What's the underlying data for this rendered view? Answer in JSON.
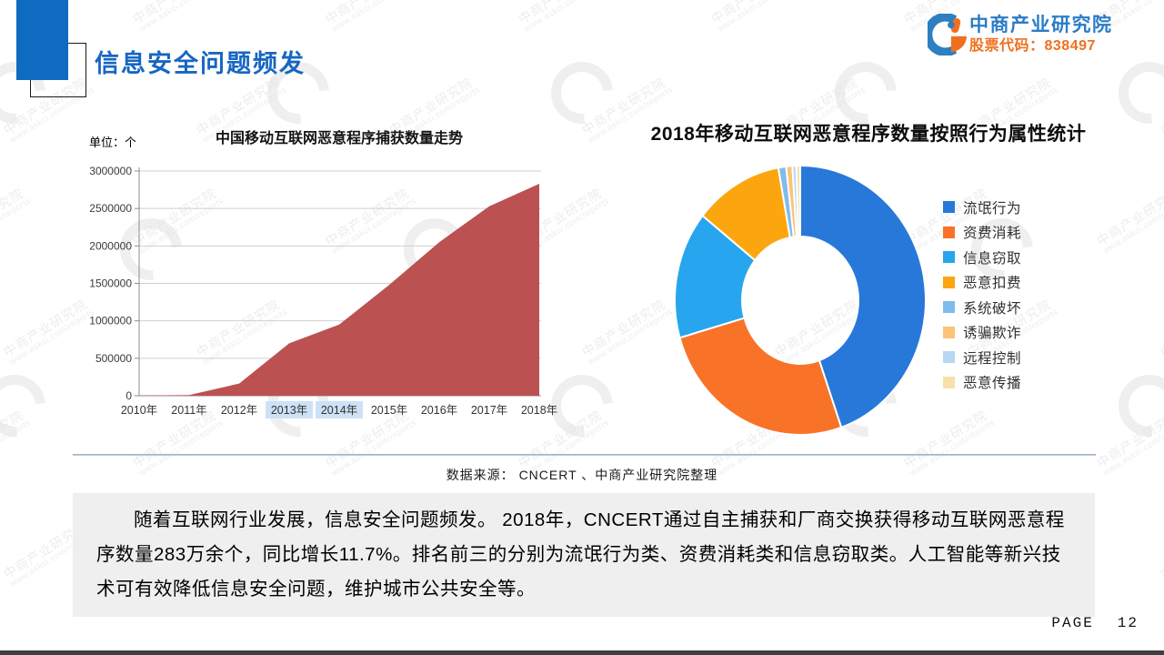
{
  "header": {
    "title": "信息安全问题频发",
    "logo_name": "中商产业研究院",
    "logo_stock": "股票代码：838497"
  },
  "watermark": {
    "line1": "中商产业研究院",
    "line2": "www.askci.com/reports"
  },
  "chart_data": [
    {
      "type": "area",
      "title": "中国移动互联网恶意程序捕获数量走势",
      "unit_label": "单位：个",
      "categories": [
        "2010年",
        "2011年",
        "2012年",
        "2013年",
        "2014年",
        "2015年",
        "2016年",
        "2017年",
        "2018年"
      ],
      "values": [
        4000,
        8000,
        163000,
        700000,
        950000,
        1480000,
        2050000,
        2530000,
        2830000
      ],
      "ylim": [
        0,
        3000000
      ],
      "yticks": [
        0,
        500000,
        1000000,
        1500000,
        2000000,
        2500000,
        3000000
      ],
      "grid": true,
      "color": "#BC5152",
      "highlighted_categories": [
        "2013年",
        "2014年"
      ]
    },
    {
      "type": "donut",
      "title": "2018年移动互联网恶意程序数量按照行为属性统计",
      "unit": "percent",
      "legend_position": "right",
      "series": [
        {
          "name": "流氓行为",
          "value": 44.7,
          "color": "#2878DA"
        },
        {
          "name": "资费消耗",
          "value": 25.8,
          "color": "#F87328"
        },
        {
          "name": "信息窃取",
          "value": 15.3,
          "color": "#27A5EE"
        },
        {
          "name": "恶意扣费",
          "value": 11.4,
          "color": "#FCA60F"
        },
        {
          "name": "系统破坏",
          "value": 1.0,
          "color": "#7FBCEC"
        },
        {
          "name": "诱骗欺诈",
          "value": 0.8,
          "color": "#FBC377"
        },
        {
          "name": "远程控制",
          "value": 0.5,
          "color": "#B7D7F4"
        },
        {
          "name": "恶意传播",
          "value": 0.5,
          "color": "#F8E0A9"
        }
      ]
    }
  ],
  "source_line": "数据来源： CNCERT 、中商产业研究院整理",
  "paragraph": "随着互联网行业发展，信息安全问题频发。 2018年，CNCERT通过自主捕获和厂商交换获得移动互联网恶意程序数量283万余个，同比增长11.7%。排名前三的分别为流氓行为类、资费消耗类和信息窃取类。人工智能等新兴技术可有效降低信息安全问题，维护城市公共安全等。",
  "footer": {
    "page_label": "PAGE",
    "page_number": "12"
  }
}
